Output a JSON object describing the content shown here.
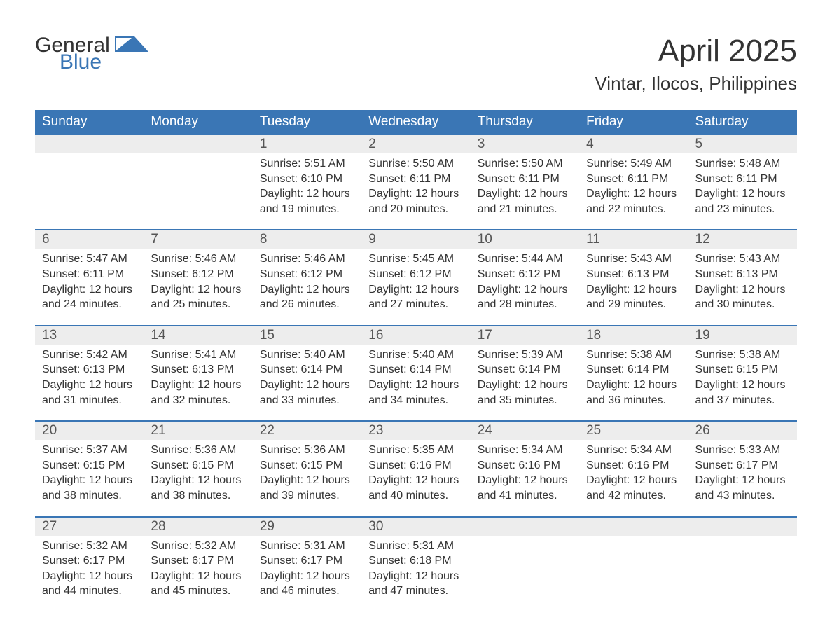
{
  "logo": {
    "text1": "General",
    "text2": "Blue",
    "accent_color": "#3a76b5"
  },
  "title": "April 2025",
  "location": "Vintar, Ilocos, Philippines",
  "colors": {
    "header_bg": "#3a76b5",
    "header_text": "#ffffff",
    "daynum_bg": "#ededed",
    "daynum_text": "#555555",
    "body_text": "#333333",
    "row_border": "#3a76b5"
  },
  "day_labels": [
    "Sunday",
    "Monday",
    "Tuesday",
    "Wednesday",
    "Thursday",
    "Friday",
    "Saturday"
  ],
  "weeks": [
    [
      null,
      null,
      {
        "d": "1",
        "sr": "5:51 AM",
        "ss": "6:10 PM",
        "dlh": "12",
        "dlm": "19"
      },
      {
        "d": "2",
        "sr": "5:50 AM",
        "ss": "6:11 PM",
        "dlh": "12",
        "dlm": "20"
      },
      {
        "d": "3",
        "sr": "5:50 AM",
        "ss": "6:11 PM",
        "dlh": "12",
        "dlm": "21"
      },
      {
        "d": "4",
        "sr": "5:49 AM",
        "ss": "6:11 PM",
        "dlh": "12",
        "dlm": "22"
      },
      {
        "d": "5",
        "sr": "5:48 AM",
        "ss": "6:11 PM",
        "dlh": "12",
        "dlm": "23"
      }
    ],
    [
      {
        "d": "6",
        "sr": "5:47 AM",
        "ss": "6:11 PM",
        "dlh": "12",
        "dlm": "24"
      },
      {
        "d": "7",
        "sr": "5:46 AM",
        "ss": "6:12 PM",
        "dlh": "12",
        "dlm": "25"
      },
      {
        "d": "8",
        "sr": "5:46 AM",
        "ss": "6:12 PM",
        "dlh": "12",
        "dlm": "26"
      },
      {
        "d": "9",
        "sr": "5:45 AM",
        "ss": "6:12 PM",
        "dlh": "12",
        "dlm": "27"
      },
      {
        "d": "10",
        "sr": "5:44 AM",
        "ss": "6:12 PM",
        "dlh": "12",
        "dlm": "28"
      },
      {
        "d": "11",
        "sr": "5:43 AM",
        "ss": "6:13 PM",
        "dlh": "12",
        "dlm": "29"
      },
      {
        "d": "12",
        "sr": "5:43 AM",
        "ss": "6:13 PM",
        "dlh": "12",
        "dlm": "30"
      }
    ],
    [
      {
        "d": "13",
        "sr": "5:42 AM",
        "ss": "6:13 PM",
        "dlh": "12",
        "dlm": "31"
      },
      {
        "d": "14",
        "sr": "5:41 AM",
        "ss": "6:13 PM",
        "dlh": "12",
        "dlm": "32"
      },
      {
        "d": "15",
        "sr": "5:40 AM",
        "ss": "6:14 PM",
        "dlh": "12",
        "dlm": "33"
      },
      {
        "d": "16",
        "sr": "5:40 AM",
        "ss": "6:14 PM",
        "dlh": "12",
        "dlm": "34"
      },
      {
        "d": "17",
        "sr": "5:39 AM",
        "ss": "6:14 PM",
        "dlh": "12",
        "dlm": "35"
      },
      {
        "d": "18",
        "sr": "5:38 AM",
        "ss": "6:14 PM",
        "dlh": "12",
        "dlm": "36"
      },
      {
        "d": "19",
        "sr": "5:38 AM",
        "ss": "6:15 PM",
        "dlh": "12",
        "dlm": "37"
      }
    ],
    [
      {
        "d": "20",
        "sr": "5:37 AM",
        "ss": "6:15 PM",
        "dlh": "12",
        "dlm": "38"
      },
      {
        "d": "21",
        "sr": "5:36 AM",
        "ss": "6:15 PM",
        "dlh": "12",
        "dlm": "38"
      },
      {
        "d": "22",
        "sr": "5:36 AM",
        "ss": "6:15 PM",
        "dlh": "12",
        "dlm": "39"
      },
      {
        "d": "23",
        "sr": "5:35 AM",
        "ss": "6:16 PM",
        "dlh": "12",
        "dlm": "40"
      },
      {
        "d": "24",
        "sr": "5:34 AM",
        "ss": "6:16 PM",
        "dlh": "12",
        "dlm": "41"
      },
      {
        "d": "25",
        "sr": "5:34 AM",
        "ss": "6:16 PM",
        "dlh": "12",
        "dlm": "42"
      },
      {
        "d": "26",
        "sr": "5:33 AM",
        "ss": "6:17 PM",
        "dlh": "12",
        "dlm": "43"
      }
    ],
    [
      {
        "d": "27",
        "sr": "5:32 AM",
        "ss": "6:17 PM",
        "dlh": "12",
        "dlm": "44"
      },
      {
        "d": "28",
        "sr": "5:32 AM",
        "ss": "6:17 PM",
        "dlh": "12",
        "dlm": "45"
      },
      {
        "d": "29",
        "sr": "5:31 AM",
        "ss": "6:17 PM",
        "dlh": "12",
        "dlm": "46"
      },
      {
        "d": "30",
        "sr": "5:31 AM",
        "ss": "6:18 PM",
        "dlh": "12",
        "dlm": "47"
      },
      null,
      null,
      null
    ]
  ],
  "labels": {
    "sunrise": "Sunrise:",
    "sunset": "Sunset:",
    "daylight": "Daylight:",
    "hours": "hours",
    "and": "and",
    "minutes": "minutes."
  }
}
